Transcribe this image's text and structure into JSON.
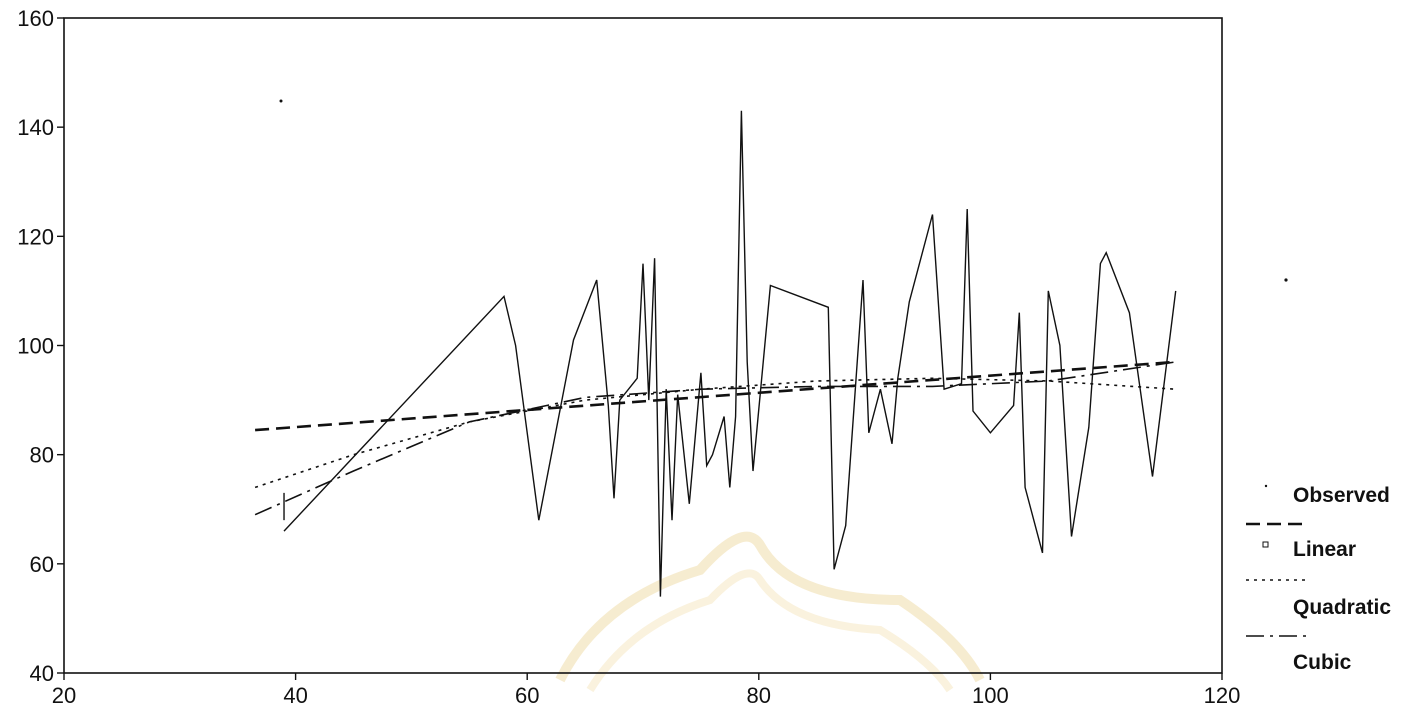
{
  "chart_data": {
    "type": "line",
    "title": "",
    "xlabel": "",
    "ylabel": "",
    "xlim": [
      20,
      120
    ],
    "ylim": [
      40,
      160
    ],
    "x_ticks": [
      20,
      40,
      60,
      80,
      100,
      120
    ],
    "y_ticks": [
      40,
      60,
      80,
      100,
      120,
      140,
      160
    ],
    "grid": false,
    "legend_position": "right",
    "legend": [
      "Observed",
      "Linear",
      "Quadratic",
      "Cubic"
    ],
    "series": [
      {
        "name": "Observed",
        "style": "solid",
        "points": [
          [
            39,
            66
          ],
          [
            58,
            109
          ],
          [
            59,
            100
          ],
          [
            61,
            68
          ],
          [
            64,
            101
          ],
          [
            66,
            112
          ],
          [
            67,
            89
          ],
          [
            67.5,
            72
          ],
          [
            68,
            90
          ],
          [
            69.5,
            94
          ],
          [
            70,
            115
          ],
          [
            70.5,
            90
          ],
          [
            71,
            116
          ],
          [
            71.5,
            54
          ],
          [
            72,
            92
          ],
          [
            72.5,
            68
          ],
          [
            73,
            91
          ],
          [
            74,
            71
          ],
          [
            75,
            95
          ],
          [
            75.5,
            78
          ],
          [
            76,
            80
          ],
          [
            77,
            87
          ],
          [
            77.5,
            74
          ],
          [
            78,
            87
          ],
          [
            78.5,
            143
          ],
          [
            79,
            97
          ],
          [
            79.5,
            77
          ],
          [
            81,
            111
          ],
          [
            86,
            107
          ],
          [
            86.5,
            59
          ],
          [
            87.5,
            67
          ],
          [
            89,
            112
          ],
          [
            89.5,
            84
          ],
          [
            90.5,
            92
          ],
          [
            91.5,
            82
          ],
          [
            92,
            94
          ],
          [
            93,
            108
          ],
          [
            95,
            124
          ],
          [
            96,
            92
          ],
          [
            97.5,
            93
          ],
          [
            98,
            125
          ],
          [
            98.5,
            88
          ],
          [
            100,
            84
          ],
          [
            102,
            89
          ],
          [
            102.5,
            106
          ],
          [
            103,
            74
          ],
          [
            104.5,
            62
          ],
          [
            105,
            110
          ],
          [
            106,
            100
          ],
          [
            107,
            65
          ],
          [
            108.5,
            85
          ],
          [
            109.5,
            115
          ],
          [
            110,
            117
          ],
          [
            112,
            106
          ],
          [
            114,
            76
          ],
          [
            116,
            110
          ]
        ]
      },
      {
        "name": "Linear",
        "style": "dashed",
        "points": [
          [
            36.5,
            84.5
          ],
          [
            116,
            97
          ]
        ]
      },
      {
        "name": "Quadratic",
        "style": "dotted",
        "points": [
          [
            36.5,
            74
          ],
          [
            45,
            80
          ],
          [
            55,
            86
          ],
          [
            65,
            90
          ],
          [
            75,
            92
          ],
          [
            85,
            93.5
          ],
          [
            95,
            94
          ],
          [
            105,
            93.5
          ],
          [
            116,
            92
          ]
        ]
      },
      {
        "name": "Cubic",
        "style": "dashdot",
        "points": [
          [
            36.5,
            69
          ],
          [
            45,
            77
          ],
          [
            55,
            86
          ],
          [
            65,
            90.5
          ],
          [
            75,
            92
          ],
          [
            85,
            92.5
          ],
          [
            95,
            92.5
          ],
          [
            105,
            93.5
          ],
          [
            116,
            97
          ]
        ]
      }
    ],
    "extra_marks": [
      {
        "x": 39,
        "y": 73,
        "to_y": 68
      },
      {
        "x": 120,
        "y": 112
      }
    ]
  }
}
